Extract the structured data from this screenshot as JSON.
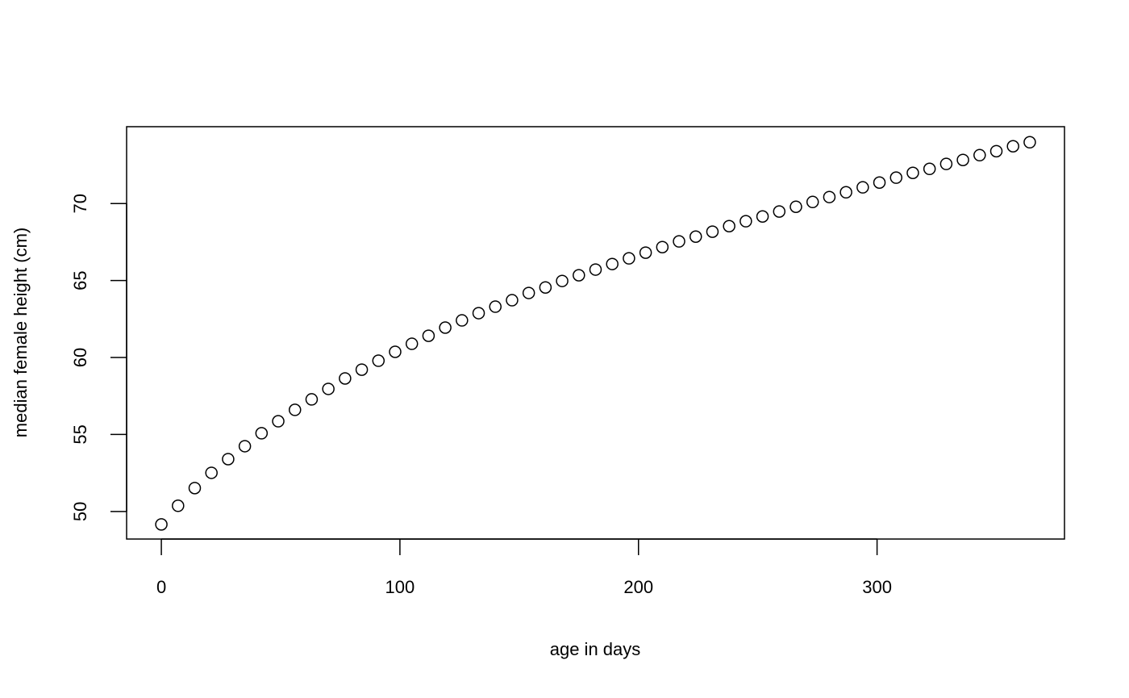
{
  "chart_data": {
    "type": "scatter",
    "x_label": "age in days",
    "y_label": "median female height (cm)",
    "x": [
      0,
      7,
      14,
      21,
      28,
      35,
      42,
      49,
      56,
      63,
      70,
      77,
      84,
      91,
      98,
      105,
      112,
      119,
      126,
      133,
      140,
      147,
      154,
      161,
      168,
      175,
      182,
      189,
      196,
      203,
      210,
      217,
      224,
      231,
      238,
      245,
      252,
      259,
      266,
      273,
      280,
      287,
      294,
      301,
      308,
      315,
      322,
      329,
      336,
      343,
      350,
      357,
      364
    ],
    "y": [
      49.16,
      50.37,
      51.52,
      52.51,
      53.4,
      54.24,
      55.08,
      55.86,
      56.6,
      57.28,
      57.96,
      58.64,
      59.21,
      59.79,
      60.37,
      60.89,
      61.41,
      61.94,
      62.41,
      62.88,
      63.3,
      63.72,
      64.19,
      64.55,
      64.97,
      65.34,
      65.71,
      66.07,
      66.44,
      66.81,
      67.17,
      67.54,
      67.85,
      68.17,
      68.53,
      68.85,
      69.16,
      69.48,
      69.79,
      70.1,
      70.42,
      70.73,
      71.05,
      71.36,
      71.68,
      71.99,
      72.25,
      72.57,
      72.83,
      73.14,
      73.4,
      73.72,
      73.98
    ],
    "color": "#000000",
    "xlim": [
      -14.56,
      378.56
    ],
    "ylim": [
      48.21,
      74.99
    ],
    "xticks": [
      0,
      100,
      200,
      300
    ],
    "yticks": [
      50,
      55,
      60,
      65,
      70
    ],
    "grid": false
  }
}
